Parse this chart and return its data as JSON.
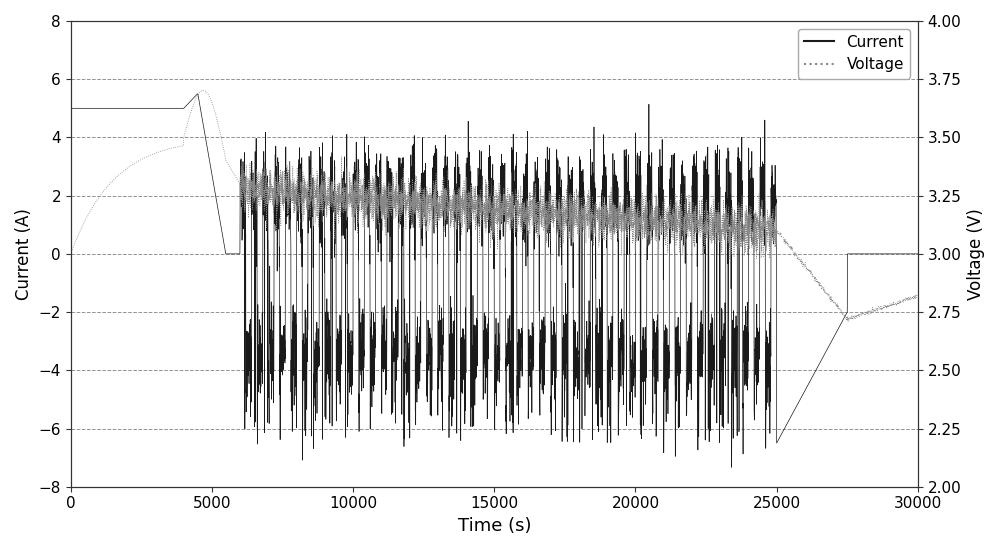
{
  "title": "",
  "xlabel": "Time (s)",
  "ylabel_left": "Current (A)",
  "ylabel_right": "Voltage (V)",
  "xlim": [
    0,
    30000
  ],
  "ylim_left": [
    -8,
    8
  ],
  "ylim_right": [
    2.0,
    4.0
  ],
  "xticks": [
    0,
    5000,
    10000,
    15000,
    20000,
    25000,
    30000
  ],
  "yticks_left": [
    -8,
    -6,
    -4,
    -2,
    0,
    2,
    4,
    6,
    8
  ],
  "yticks_right": [
    2.0,
    2.25,
    2.5,
    2.75,
    3.0,
    3.25,
    3.5,
    3.75,
    4.0
  ],
  "current_color": "#1a1a1a",
  "voltage_color": "#888888",
  "background_color": "#ffffff",
  "legend_current_label": "Current",
  "legend_voltage_label": "Voltage",
  "seed": 42,
  "phase1_end": 4000,
  "phase2_end": 5500,
  "phase3_end": 6000,
  "total_time": 30000,
  "cycling_end": 25000
}
